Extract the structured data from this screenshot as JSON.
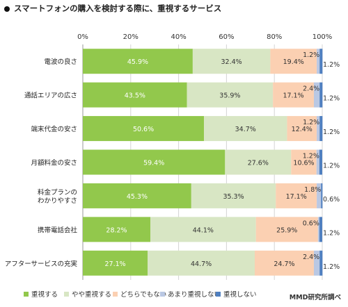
{
  "title": "スマートフォンの購入を検討する際に、重視するサービス",
  "source": "MMD研究所調べ",
  "chart_data": {
    "type": "bar",
    "orientation": "horizontal",
    "stacked": true,
    "title": "スマートフォンの購入を検討する際に、重視するサービス",
    "xlim": [
      0,
      100
    ],
    "x_ticks": [
      "0%",
      "20%",
      "40%",
      "60%",
      "80%",
      "100%"
    ],
    "grid": true,
    "legend_position": "bottom",
    "categories": [
      "電波の良さ",
      "通話エリアの広さ",
      "端末代金の安さ",
      "月額料金の安さ",
      "料金プランの\nわかりやすさ",
      "携帯電話会社",
      "アフターサービスの充実"
    ],
    "series": [
      {
        "name": "重視する",
        "color": "#92c84c",
        "values": [
          45.9,
          43.5,
          50.6,
          59.4,
          45.3,
          28.2,
          27.1
        ]
      },
      {
        "name": "やや重視する",
        "color": "#d8e6c4",
        "values": [
          32.4,
          35.9,
          34.7,
          27.6,
          35.3,
          44.1,
          44.7
        ]
      },
      {
        "name": "どちらでもない",
        "color": "#fbd0b2",
        "values": [
          19.4,
          17.1,
          12.4,
          10.6,
          17.1,
          25.9,
          24.7
        ]
      },
      {
        "name": "あまり重視しない",
        "color": "#bac8e3",
        "values": [
          1.2,
          2.4,
          1.2,
          1.2,
          1.8,
          0.6,
          2.4
        ]
      },
      {
        "name": "重視しない",
        "color": "#4f7fc0",
        "values": [
          1.2,
          1.2,
          1.2,
          1.2,
          0.6,
          1.2,
          1.2
        ]
      }
    ]
  }
}
